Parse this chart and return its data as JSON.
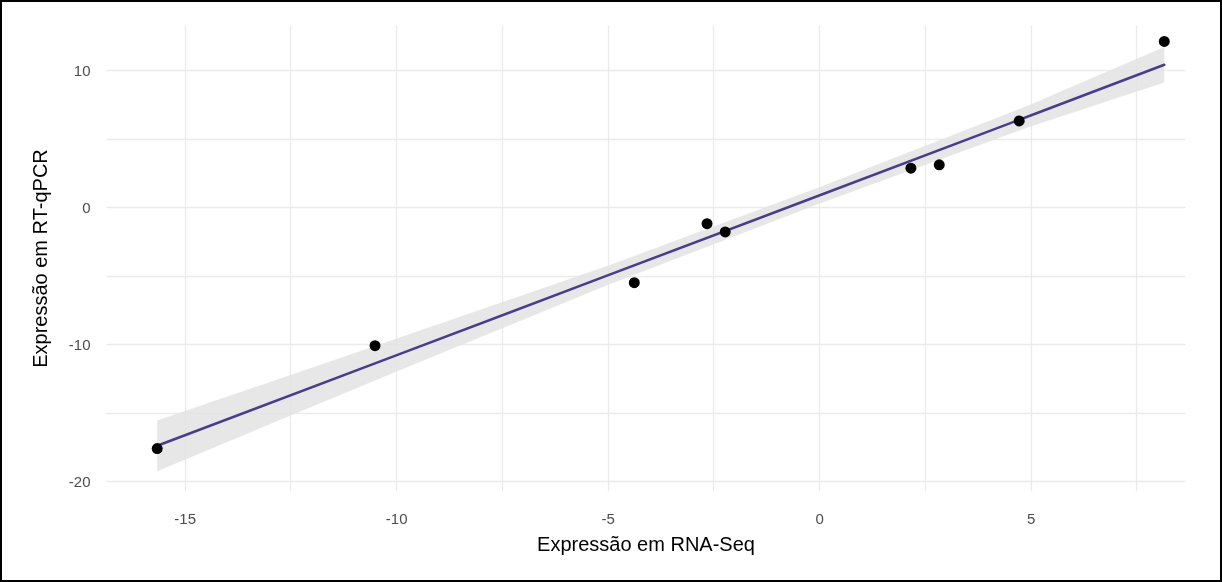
{
  "chart_data": {
    "type": "scatter",
    "xlabel": "Expressão em RNA-Seq",
    "ylabel": "Expressão em RT-qPCR",
    "xlim": [
      -16.86,
      8.65
    ],
    "ylim": [
      -20.7,
      13.3
    ],
    "xticks": [
      -15,
      {
        "value": -12.5,
        "label": null
      },
      -10,
      {
        "value": -7.5,
        "label": null
      },
      -5,
      {
        "value": -2.5,
        "label": null
      },
      0,
      {
        "value": 2.5,
        "label": null
      },
      5,
      {
        "value": 7.5,
        "label": null
      }
    ],
    "yticks": [
      -20,
      {
        "value": -15,
        "label": null
      },
      -10,
      {
        "value": -5,
        "label": null
      },
      0,
      {
        "value": 5,
        "label": null
      },
      10
    ],
    "grid": true,
    "series": [
      {
        "type": "line",
        "color": "#483d8b",
        "line_style": "solid",
        "x": [
          -15.65,
          -10,
          -5,
          0,
          5,
          8.16
        ],
        "values": [
          -17.4,
          -10.81,
          -4.97,
          0.86,
          6.7,
          10.4
        ],
        "lower": [
          -19.25,
          -12.0,
          -5.67,
          0.26,
          5.9,
          9.1
        ],
        "upper": [
          -15.55,
          -9.6,
          -4.27,
          1.46,
          7.5,
          11.7
        ]
      },
      {
        "color": "#000000",
        "marker": "circle",
        "x": [
          -15.65,
          -10.5,
          -4.37,
          -2.65,
          -2.22,
          2.17,
          2.84,
          4.73,
          8.16
        ],
        "values": [
          -17.6,
          -10.1,
          -5.5,
          -1.2,
          -1.8,
          2.85,
          3.1,
          6.3,
          12.1
        ]
      }
    ]
  }
}
